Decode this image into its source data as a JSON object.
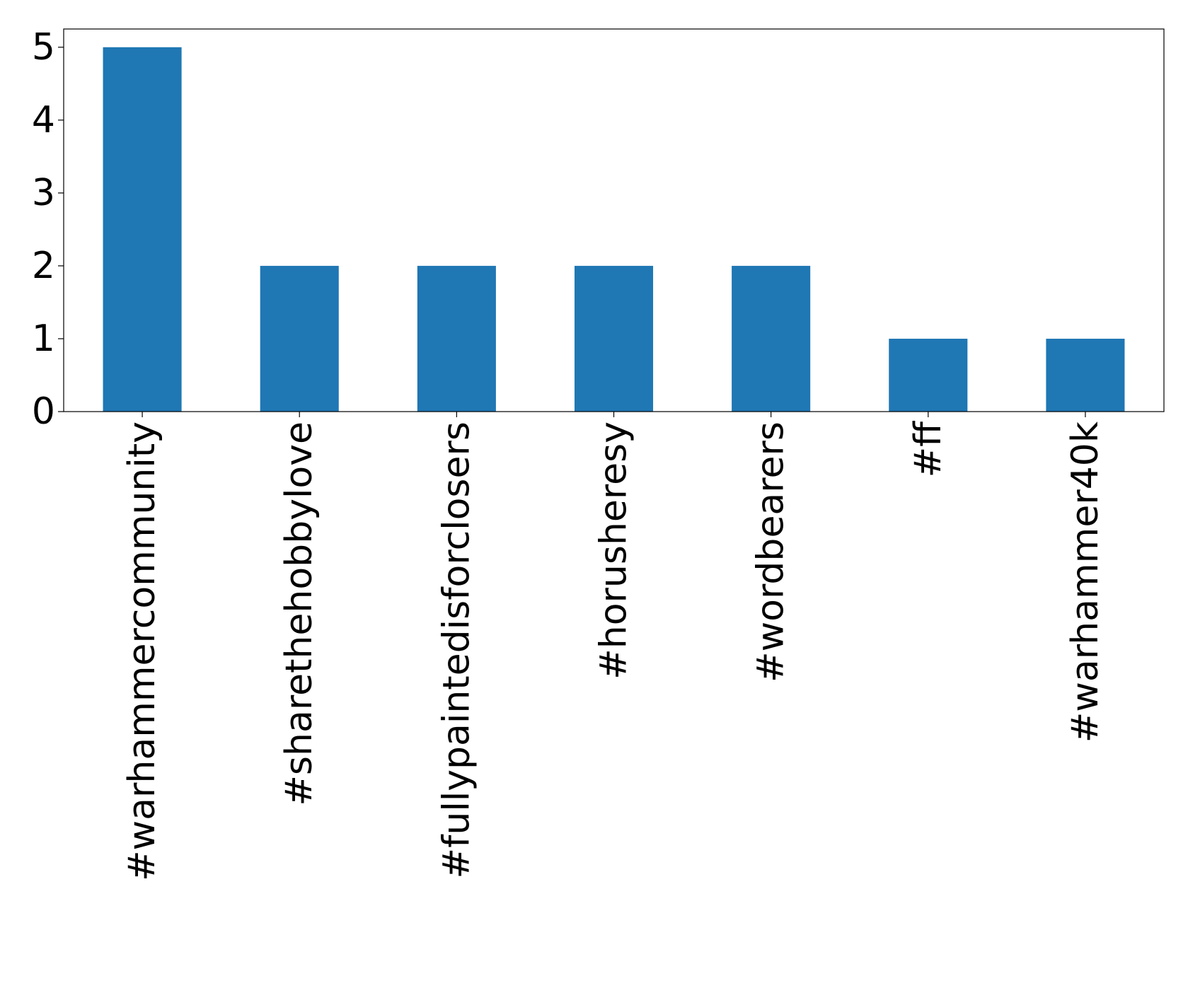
{
  "chart_data": {
    "type": "bar",
    "title": "",
    "xlabel": "",
    "ylabel": "",
    "categories": [
      "#warhammercommunity",
      "#sharethehobbylove",
      "#fullypaintedisforclosers",
      "#horusheresy",
      "#wordbearers",
      "#ff",
      "#warhammer40k"
    ],
    "values": [
      5,
      2,
      2,
      2,
      2,
      1,
      1
    ],
    "ylim": [
      0,
      5.25
    ],
    "yticks": [
      0,
      1,
      2,
      3,
      4,
      5
    ],
    "grid": false,
    "legend": "none",
    "bar_color": "#1f77b4"
  }
}
